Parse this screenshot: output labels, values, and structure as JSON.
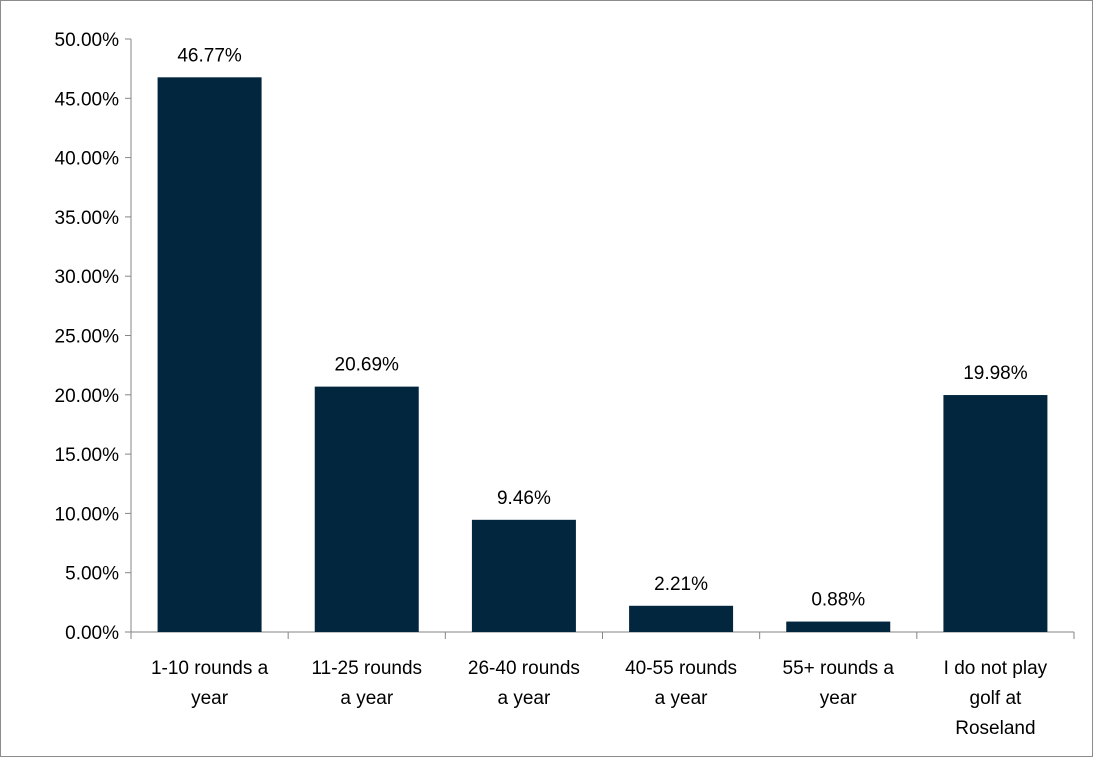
{
  "chart_data": {
    "type": "bar",
    "title": "",
    "xlabel": "",
    "ylabel": "",
    "categories": [
      [
        "1-10 rounds a",
        "year"
      ],
      [
        "11-25 rounds",
        "a year"
      ],
      [
        "26-40 rounds",
        "a year"
      ],
      [
        "40-55 rounds",
        "a year"
      ],
      [
        "55+ rounds a",
        "year"
      ],
      [
        "I do not play",
        "golf at",
        "Roseland"
      ]
    ],
    "values": [
      46.77,
      20.69,
      9.46,
      2.21,
      0.88,
      19.98
    ],
    "value_labels": [
      "46.77%",
      "20.69%",
      "9.46%",
      "2.21%",
      "0.88%",
      "19.98%"
    ],
    "ylim": [
      0,
      50
    ],
    "yticks": [
      0,
      5,
      10,
      15,
      20,
      25,
      30,
      35,
      40,
      45,
      50
    ],
    "ytick_labels": [
      "0.00%",
      "5.00%",
      "10.00%",
      "15.00%",
      "20.00%",
      "25.00%",
      "30.00%",
      "35.00%",
      "40.00%",
      "45.00%",
      "50.00%"
    ],
    "grid": false,
    "legend": "none",
    "bar_color": "#03263f"
  }
}
